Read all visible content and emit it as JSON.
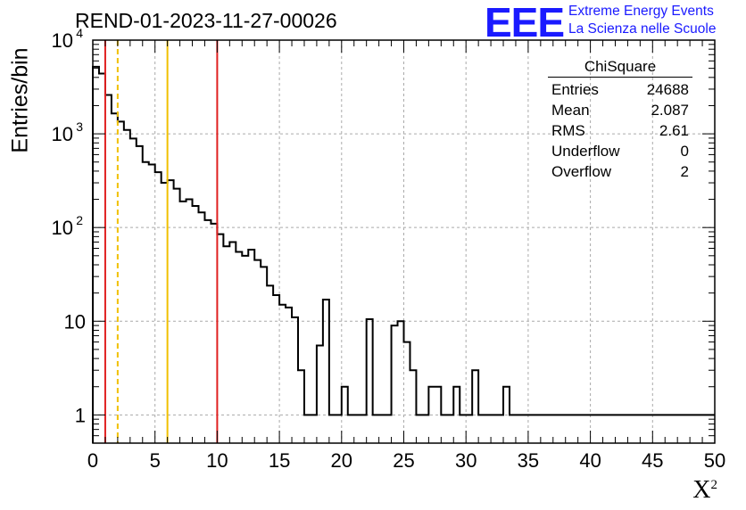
{
  "title": "REND-01-2023-11-27-00026",
  "logo": {
    "mark": "EEE",
    "line1": "Extreme Energy Events",
    "line2": "La Scienza nelle Scuole"
  },
  "stats_box": {
    "name": "ChiSquare",
    "rows": [
      {
        "label": "Entries",
        "value": "24688"
      },
      {
        "label": "Mean",
        "value": "2.087"
      },
      {
        "label": "RMS",
        "value": "2.61"
      },
      {
        "label": "Underflow",
        "value": "0"
      },
      {
        "label": "Overflow",
        "value": "2"
      }
    ]
  },
  "chart_data": {
    "type": "histogram",
    "title": "REND-01-2023-11-27-00026",
    "xlabel": "X",
    "xlabel_superscript": "2",
    "ylabel": "Entries/bin",
    "xlim": [
      0,
      50
    ],
    "ylim": [
      0.5,
      10000
    ],
    "yscale": "log",
    "grid": true,
    "bin_width": 0.5,
    "bin_start": 0,
    "counts": [
      5200,
      4400,
      2600,
      1650,
      1350,
      1100,
      890,
      740,
      500,
      470,
      390,
      300,
      320,
      260,
      190,
      200,
      170,
      145,
      120,
      110,
      85,
      63,
      70,
      55,
      50,
      58,
      45,
      38,
      24,
      19,
      15,
      14,
      11,
      3,
      1,
      1,
      5.5,
      17,
      1,
      1,
      2,
      1,
      1,
      1,
      10.5,
      1,
      1,
      1,
      9,
      10,
      6,
      3,
      1,
      1,
      2,
      2,
      1,
      1,
      2,
      1,
      1,
      3,
      1,
      1,
      1,
      1,
      2,
      1,
      1,
      1,
      1,
      1,
      1,
      1,
      1,
      1,
      1,
      1,
      1,
      1,
      1,
      1,
      1,
      1,
      1,
      1,
      1,
      1,
      1,
      1,
      1,
      1,
      1,
      1,
      1,
      1,
      1,
      1,
      1,
      1
    ],
    "xticks": [
      0,
      5,
      10,
      15,
      20,
      25,
      30,
      35,
      40,
      45,
      50
    ],
    "yticks": [
      {
        "value": 1,
        "label": "1"
      },
      {
        "value": 10,
        "label": "10"
      },
      {
        "value": 100,
        "label": "10",
        "exp": "2"
      },
      {
        "value": 1000,
        "label": "10",
        "exp": "3"
      },
      {
        "value": 10000,
        "label": "10",
        "exp": "4"
      }
    ],
    "vertical_lines": [
      {
        "x": 1,
        "color": "#e02020",
        "style": "solid"
      },
      {
        "x": 2,
        "color": "#f0c000",
        "style": "dashed"
      },
      {
        "x": 6,
        "color": "#f0c000",
        "style": "solid"
      },
      {
        "x": 10,
        "color": "#e02020",
        "style": "solid"
      }
    ],
    "colors": {
      "line": "#000000",
      "grid": "#aaaaaa",
      "logo": "#1a1aff"
    }
  }
}
